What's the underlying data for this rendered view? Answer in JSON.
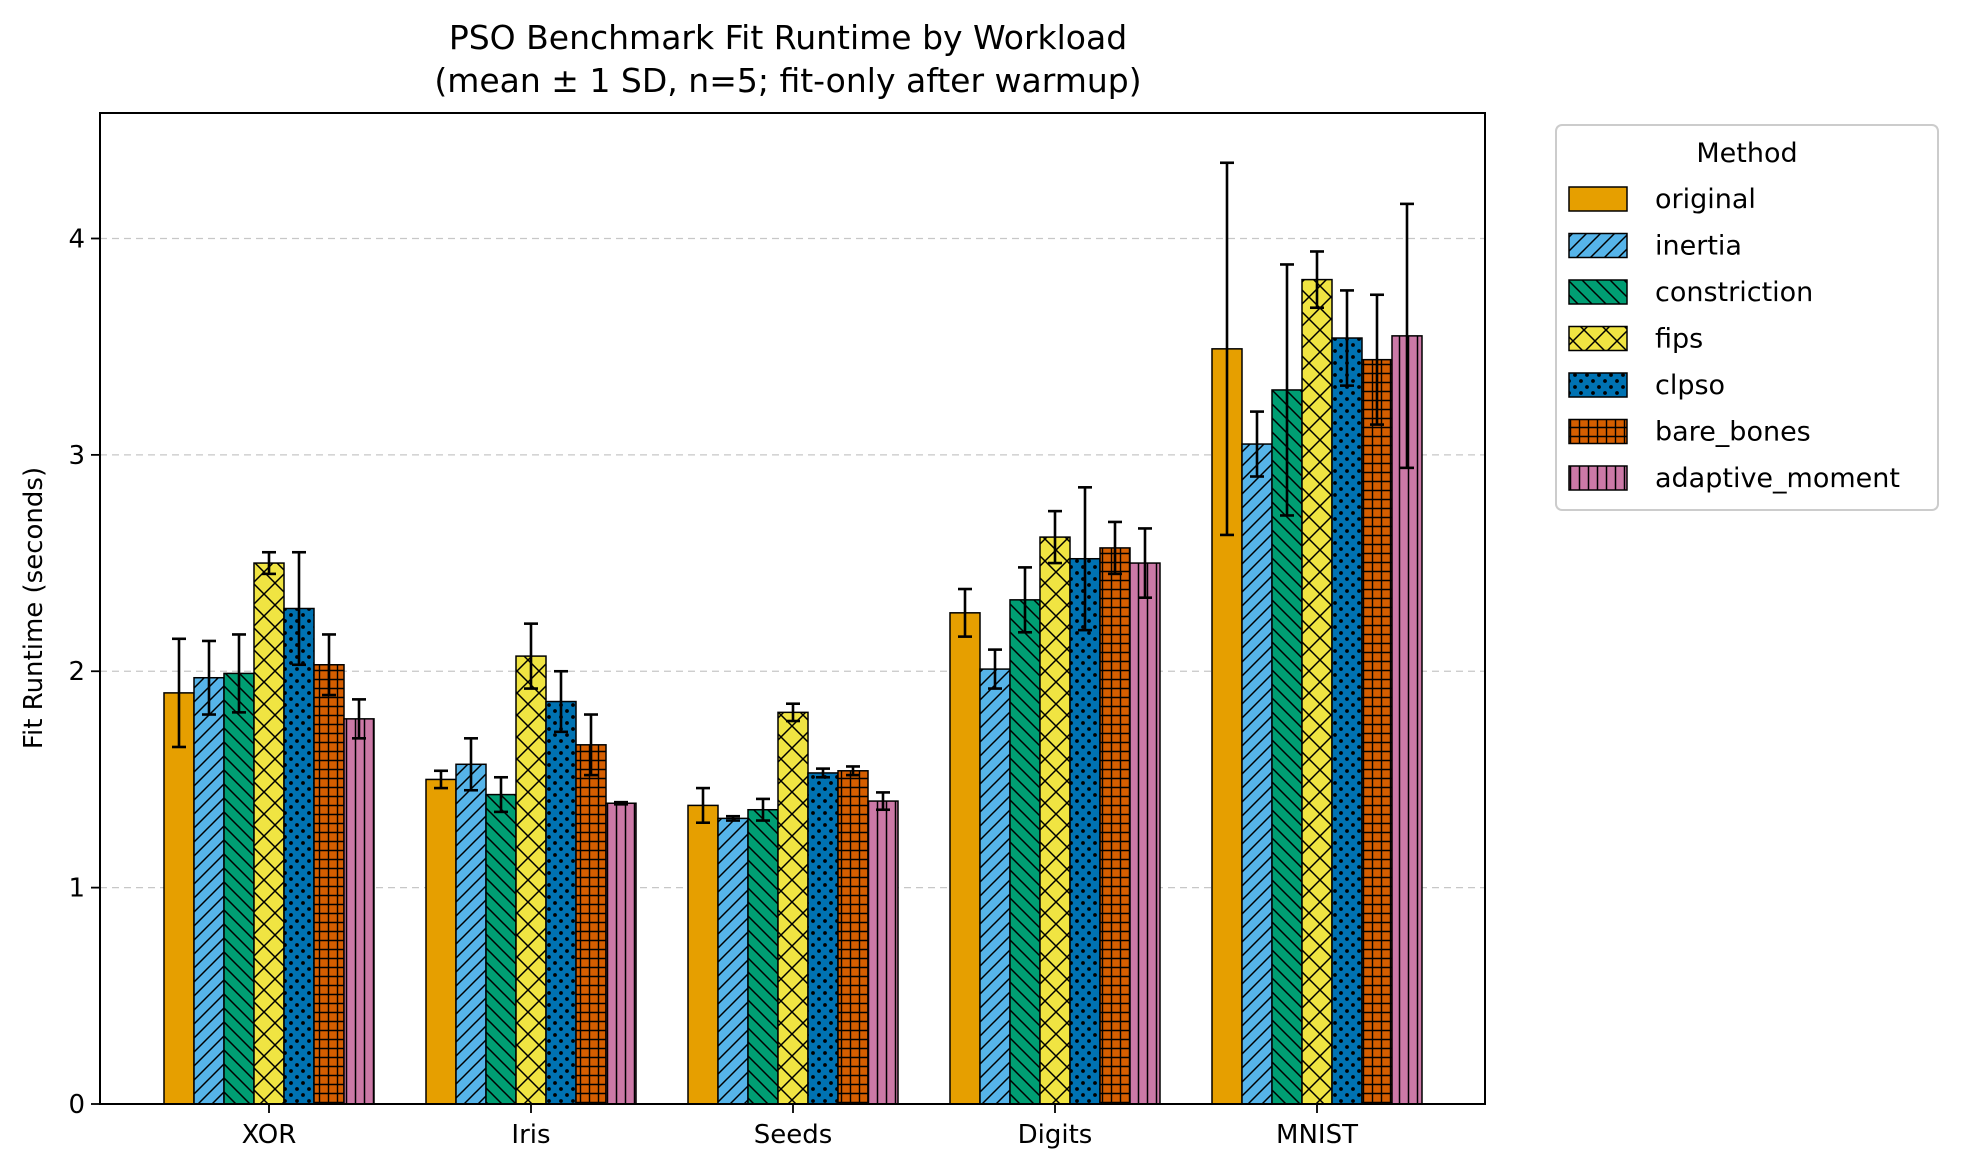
{
  "chart_data": {
    "type": "bar",
    "title": "PSO Benchmark Fit Runtime by Workload",
    "subtitle": "(mean ± 1 SD, n=5; fit-only after warmup)",
    "xlabel": "",
    "ylabel": "Fit Runtime (seconds)",
    "ylim": [
      0,
      4.58
    ],
    "yticks": [
      0,
      1,
      2,
      3,
      4
    ],
    "grid": "horizontal-dashed",
    "legend_title": "Method",
    "legend_placement": "outside-top-right",
    "categories": [
      "XOR",
      "Iris",
      "Seeds",
      "Digits",
      "MNIST"
    ],
    "series": [
      {
        "name": "original",
        "color": "#E69F00",
        "hatch": "none",
        "values": [
          1.9,
          1.5,
          1.38,
          2.27,
          3.49
        ],
        "errors": [
          0.25,
          0.04,
          0.08,
          0.11,
          0.86
        ]
      },
      {
        "name": "inertia",
        "color": "#56B4E9",
        "hatch": "diagonal-forward",
        "values": [
          1.97,
          1.57,
          1.32,
          2.01,
          3.05
        ],
        "errors": [
          0.17,
          0.12,
          0.01,
          0.09,
          0.15
        ]
      },
      {
        "name": "constriction",
        "color": "#009E73",
        "hatch": "diagonal-back",
        "values": [
          1.99,
          1.43,
          1.36,
          2.33,
          3.3
        ],
        "errors": [
          0.18,
          0.08,
          0.05,
          0.15,
          0.58
        ]
      },
      {
        "name": "fips",
        "color": "#F0E442",
        "hatch": "crosshatch-x",
        "values": [
          2.5,
          2.07,
          1.81,
          2.62,
          3.81
        ],
        "errors": [
          0.05,
          0.15,
          0.04,
          0.12,
          0.13
        ]
      },
      {
        "name": "clpso",
        "color": "#0072B2",
        "hatch": "dots",
        "values": [
          2.29,
          1.86,
          1.53,
          2.52,
          3.54
        ],
        "errors": [
          0.26,
          0.14,
          0.02,
          0.33,
          0.22
        ]
      },
      {
        "name": "bare_bones",
        "color": "#D55E00",
        "hatch": "grid",
        "values": [
          2.03,
          1.66,
          1.54,
          2.57,
          3.44
        ],
        "errors": [
          0.14,
          0.14,
          0.02,
          0.12,
          0.3
        ]
      },
      {
        "name": "adaptive_moment",
        "color": "#CC79A7",
        "hatch": "vertical",
        "values": [
          1.78,
          1.39,
          1.4,
          2.5,
          3.55
        ],
        "errors": [
          0.09,
          0.005,
          0.04,
          0.16,
          0.61
        ]
      }
    ]
  }
}
